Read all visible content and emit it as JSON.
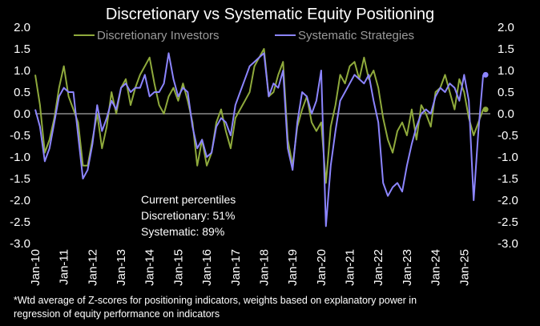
{
  "chart_data": {
    "type": "line",
    "title": "Discretionary  vs Systematic Equity Positioning",
    "xlabel": "",
    "ylabel": "",
    "ylim": [
      -3.0,
      2.0
    ],
    "y_ticks": [
      "2.0",
      "1.5",
      "1.0",
      "0.5",
      "0.0",
      "-0.5",
      "-1.0",
      "-1.5",
      "-2.0",
      "-2.5",
      "-3.0"
    ],
    "x_ticks": [
      "Jan-10",
      "Jan-11",
      "Jan-12",
      "Jan-13",
      "Jan-14",
      "Jan-15",
      "Jan-16",
      "Jan-17",
      "Jan-18",
      "Jan-19",
      "Jan-20",
      "Jan-21",
      "Jan-22",
      "Jan-23",
      "Jan-24",
      "Jan-25"
    ],
    "x_range": [
      "2010-01",
      "2025-12"
    ],
    "grid": false,
    "zero_line": true,
    "legend_position": "top",
    "annotation": [
      "Current percentiles",
      "Discretionary: 51%",
      "Systematic: 89%"
    ],
    "footnote": [
      "*Wtd average of Z-scores for positioning indicators, weights based on explanatory power in",
      "regression of equity performance on indicators"
    ],
    "series": [
      {
        "name": "Discretionary Investors",
        "color": "#8faa3c",
        "x": [
          "2010-01",
          "2010-03",
          "2010-05",
          "2010-07",
          "2010-09",
          "2010-11",
          "2011-01",
          "2011-03",
          "2011-05",
          "2011-07",
          "2011-09",
          "2011-11",
          "2012-01",
          "2012-03",
          "2012-05",
          "2012-07",
          "2012-09",
          "2012-11",
          "2013-01",
          "2013-03",
          "2013-05",
          "2013-07",
          "2013-09",
          "2013-11",
          "2014-01",
          "2014-03",
          "2014-05",
          "2014-07",
          "2014-09",
          "2014-11",
          "2015-01",
          "2015-03",
          "2015-05",
          "2015-07",
          "2015-09",
          "2015-11",
          "2016-01",
          "2016-03",
          "2016-05",
          "2016-07",
          "2016-09",
          "2016-11",
          "2017-01",
          "2017-03",
          "2017-05",
          "2017-07",
          "2017-09",
          "2017-11",
          "2018-01",
          "2018-03",
          "2018-05",
          "2018-07",
          "2018-09",
          "2018-11",
          "2019-01",
          "2019-03",
          "2019-05",
          "2019-07",
          "2019-09",
          "2019-11",
          "2020-01",
          "2020-03",
          "2020-05",
          "2020-07",
          "2020-09",
          "2020-11",
          "2021-01",
          "2021-03",
          "2021-05",
          "2021-07",
          "2021-09",
          "2021-11",
          "2022-01",
          "2022-03",
          "2022-05",
          "2022-07",
          "2022-09",
          "2022-11",
          "2023-01",
          "2023-03",
          "2023-05",
          "2023-07",
          "2023-09",
          "2023-11",
          "2024-01",
          "2024-03",
          "2024-05",
          "2024-07",
          "2024-09",
          "2024-11",
          "2025-01",
          "2025-03",
          "2025-05",
          "2025-07",
          "2025-09"
        ],
        "values": [
          0.9,
          0.2,
          -0.9,
          -0.6,
          -0.1,
          0.6,
          1.1,
          0.4,
          0.1,
          -0.2,
          -1.2,
          -1.2,
          -0.6,
          0.0,
          -0.8,
          -0.3,
          0.5,
          0.0,
          0.6,
          0.8,
          0.2,
          0.6,
          0.9,
          1.1,
          1.3,
          0.7,
          0.2,
          0.0,
          0.4,
          0.6,
          0.3,
          0.7,
          0.3,
          -0.2,
          -1.2,
          -0.6,
          -1.2,
          -0.9,
          -0.2,
          0.1,
          -0.4,
          -0.8,
          -0.1,
          0.1,
          0.3,
          0.5,
          1.1,
          1.3,
          1.5,
          0.4,
          0.5,
          0.9,
          1.2,
          -0.6,
          -1.2,
          -0.3,
          0.1,
          0.4,
          -0.2,
          -0.4,
          -0.2,
          -1.6,
          -0.3,
          0.2,
          0.9,
          0.7,
          1.1,
          1.2,
          0.8,
          1.3,
          0.8,
          1.0,
          0.6,
          -0.1,
          -0.6,
          -0.9,
          -0.4,
          -0.2,
          -0.5,
          0.1,
          -0.6,
          0.2,
          0.0,
          -0.3,
          0.5,
          0.6,
          0.9,
          0.5,
          0.1,
          0.8,
          0.5,
          -0.1,
          -0.5,
          -0.2,
          0.1
        ]
      },
      {
        "name": "Systematic Strategies",
        "color": "#8c85ff",
        "x": [
          "2010-01",
          "2010-03",
          "2010-05",
          "2010-07",
          "2010-09",
          "2010-11",
          "2011-01",
          "2011-03",
          "2011-05",
          "2011-07",
          "2011-09",
          "2011-11",
          "2012-01",
          "2012-03",
          "2012-05",
          "2012-07",
          "2012-09",
          "2012-11",
          "2013-01",
          "2013-03",
          "2013-05",
          "2013-07",
          "2013-09",
          "2013-11",
          "2014-01",
          "2014-03",
          "2014-05",
          "2014-07",
          "2014-09",
          "2014-11",
          "2015-01",
          "2015-03",
          "2015-05",
          "2015-07",
          "2015-09",
          "2015-11",
          "2016-01",
          "2016-03",
          "2016-05",
          "2016-07",
          "2016-09",
          "2016-11",
          "2017-01",
          "2017-03",
          "2017-05",
          "2017-07",
          "2017-09",
          "2017-11",
          "2018-01",
          "2018-03",
          "2018-05",
          "2018-07",
          "2018-09",
          "2018-11",
          "2019-01",
          "2019-03",
          "2019-05",
          "2019-07",
          "2019-09",
          "2019-11",
          "2020-01",
          "2020-03",
          "2020-05",
          "2020-07",
          "2020-09",
          "2020-11",
          "2021-01",
          "2021-03",
          "2021-05",
          "2021-07",
          "2021-09",
          "2021-11",
          "2022-01",
          "2022-03",
          "2022-05",
          "2022-07",
          "2022-09",
          "2022-11",
          "2023-01",
          "2023-03",
          "2023-05",
          "2023-07",
          "2023-09",
          "2023-11",
          "2024-01",
          "2024-03",
          "2024-05",
          "2024-07",
          "2024-09",
          "2024-11",
          "2025-01",
          "2025-03",
          "2025-05",
          "2025-07",
          "2025-09"
        ],
        "values": [
          0.1,
          -0.3,
          -1.1,
          -0.8,
          -0.2,
          0.4,
          0.6,
          0.5,
          0.5,
          -0.5,
          -1.5,
          -1.3,
          -0.7,
          0.2,
          -0.4,
          -0.1,
          0.3,
          0.1,
          0.6,
          0.7,
          0.5,
          0.6,
          0.6,
          0.9,
          0.4,
          0.5,
          0.5,
          0.7,
          1.4,
          0.8,
          0.4,
          0.6,
          0.5,
          -0.3,
          -0.8,
          -0.6,
          -1.0,
          -0.9,
          -0.3,
          -0.1,
          -0.2,
          -0.5,
          0.2,
          0.5,
          0.8,
          1.1,
          1.2,
          1.3,
          1.4,
          0.4,
          0.7,
          0.6,
          1.0,
          -0.8,
          -1.3,
          -0.2,
          0.5,
          0.4,
          0.0,
          0.3,
          1.0,
          -2.6,
          -1.2,
          -0.4,
          0.3,
          0.5,
          0.7,
          0.9,
          0.8,
          0.7,
          0.9,
          0.3,
          -0.2,
          -1.6,
          -1.9,
          -1.7,
          -1.6,
          -1.8,
          -1.2,
          -0.7,
          -0.3,
          0.0,
          0.1,
          0.0,
          0.4,
          0.6,
          0.5,
          0.7,
          0.6,
          0.3,
          0.9,
          0.3,
          -2.0,
          -0.4,
          0.9
        ]
      }
    ]
  }
}
